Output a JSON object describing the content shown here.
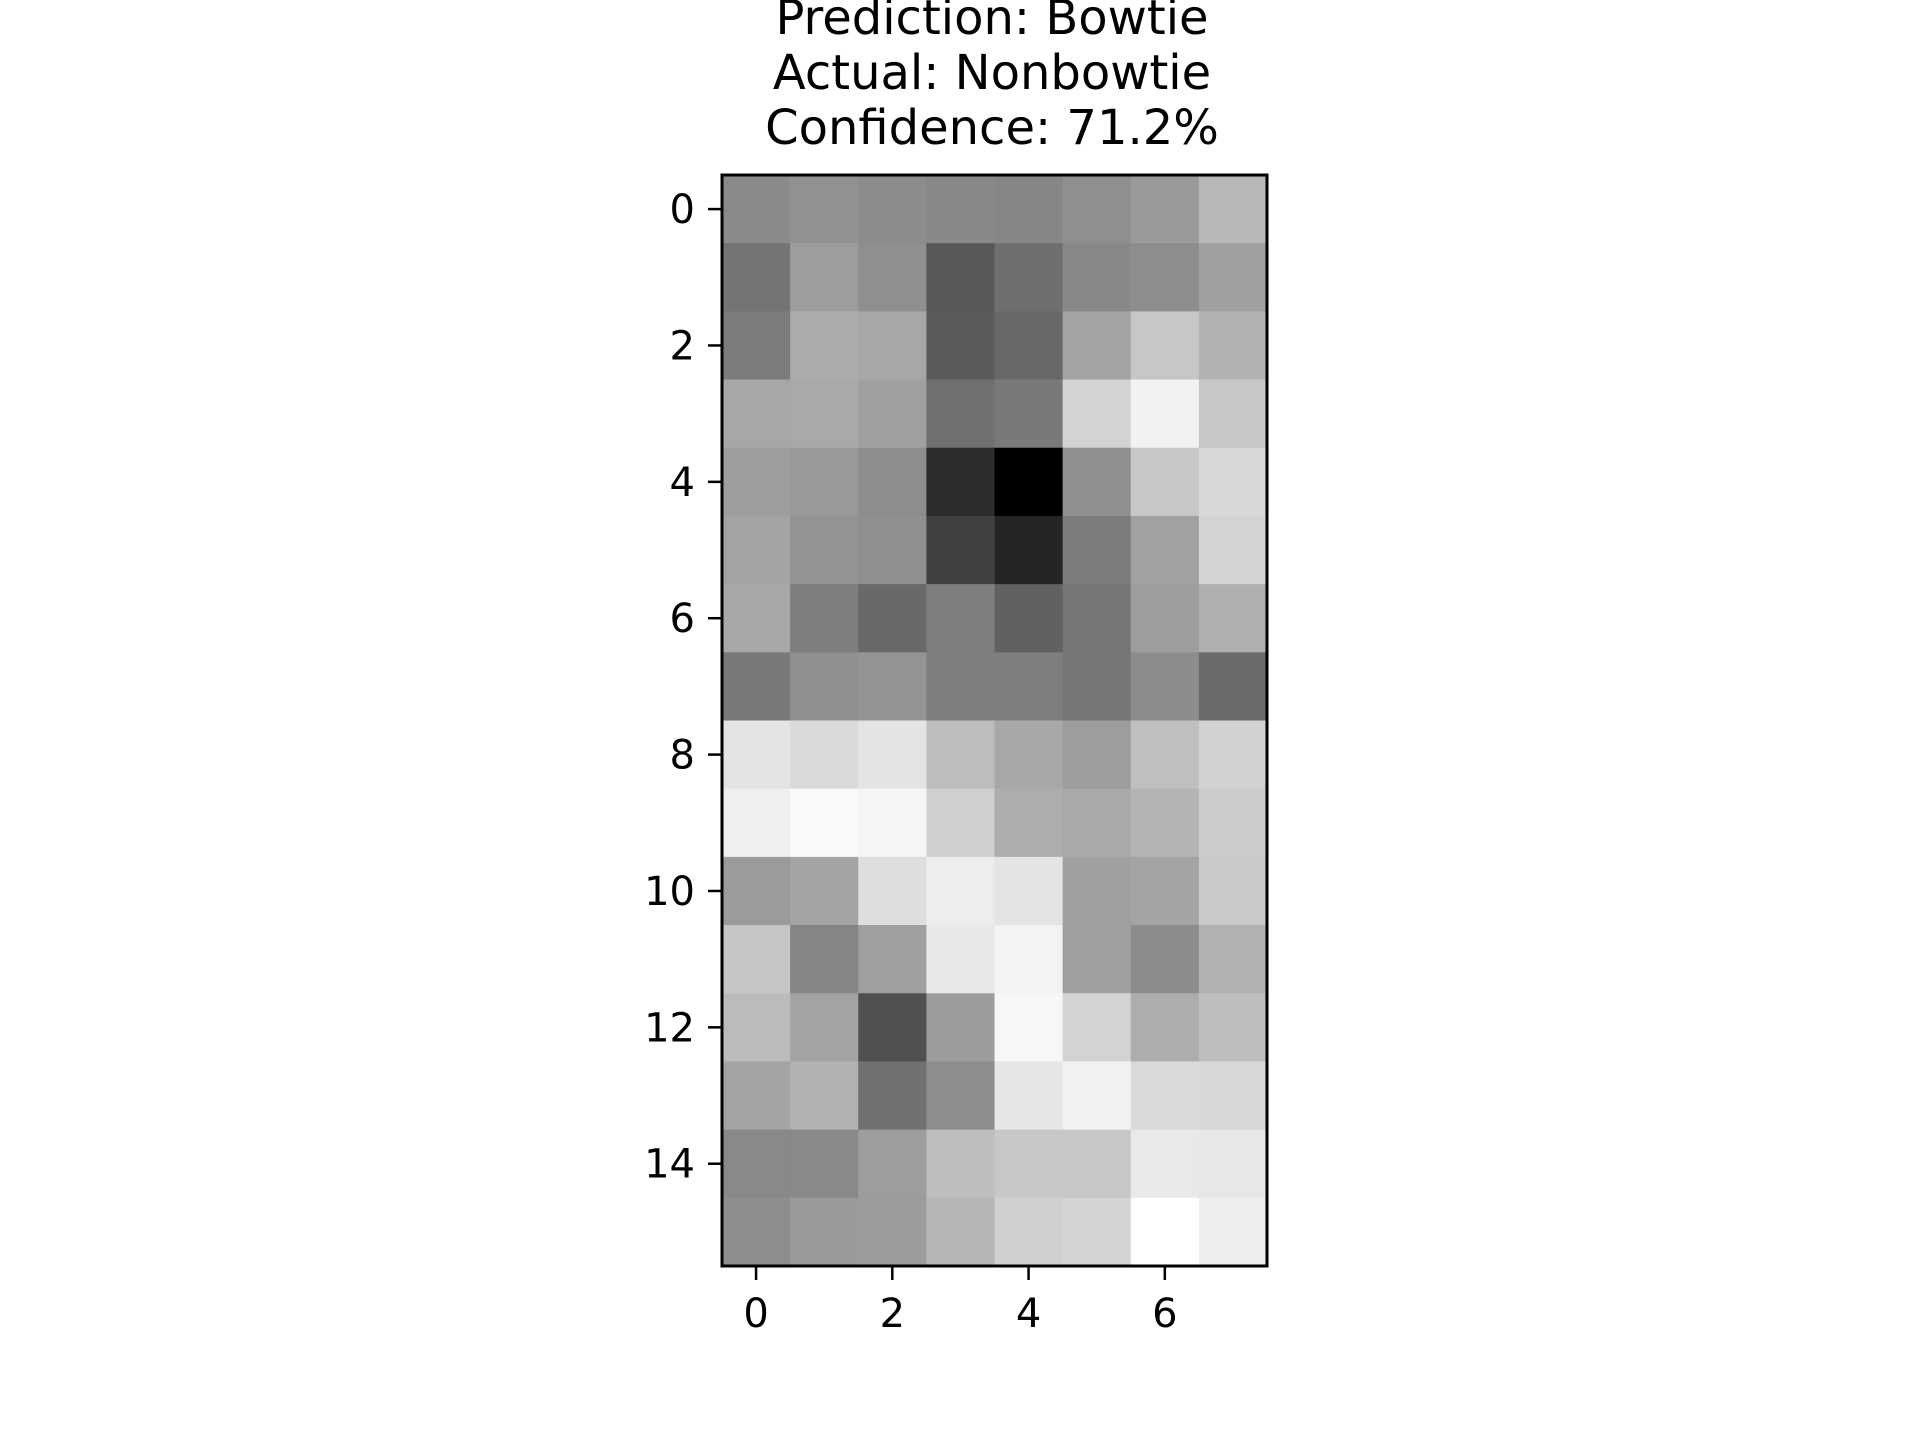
{
  "chart_data": {
    "type": "heatmap",
    "title_lines": [
      "Prediction: Bowtie",
      "Actual: Nonbowtie",
      "Confidence: 71.2%"
    ],
    "colormap": "gray",
    "grid": false,
    "x_ticks": [
      0,
      2,
      4,
      6
    ],
    "y_ticks": [
      0,
      2,
      4,
      6,
      8,
      10,
      12,
      14
    ],
    "xlim": [
      -0.5,
      7.5
    ],
    "ylim": [
      15.5,
      -0.5
    ],
    "rows": 16,
    "cols": 8,
    "values": [
      [
        138,
        146,
        140,
        136,
        134,
        143,
        154,
        184
      ],
      [
        116,
        157,
        143,
        88,
        111,
        136,
        141,
        160
      ],
      [
        124,
        171,
        167,
        91,
        104,
        163,
        199,
        178
      ],
      [
        167,
        169,
        160,
        112,
        121,
        211,
        242,
        199
      ],
      [
        158,
        153,
        141,
        44,
        0,
        144,
        200,
        216
      ],
      [
        163,
        147,
        144,
        65,
        37,
        124,
        161,
        211
      ],
      [
        168,
        126,
        105,
        126,
        97,
        118,
        158,
        175
      ],
      [
        121,
        144,
        148,
        126,
        126,
        118,
        140,
        106
      ],
      [
        228,
        218,
        228,
        189,
        168,
        157,
        191,
        210
      ],
      [
        239,
        249,
        245,
        208,
        173,
        169,
        180,
        203
      ],
      [
        155,
        164,
        222,
        237,
        228,
        160,
        164,
        202
      ],
      [
        198,
        133,
        159,
        232,
        243,
        160,
        140,
        177
      ],
      [
        187,
        163,
        80,
        156,
        247,
        211,
        173,
        190
      ],
      [
        164,
        177,
        113,
        141,
        230,
        242,
        218,
        215
      ],
      [
        137,
        137,
        157,
        190,
        199,
        199,
        233,
        231
      ],
      [
        142,
        154,
        156,
        182,
        208,
        212,
        255,
        238
      ]
    ]
  }
}
